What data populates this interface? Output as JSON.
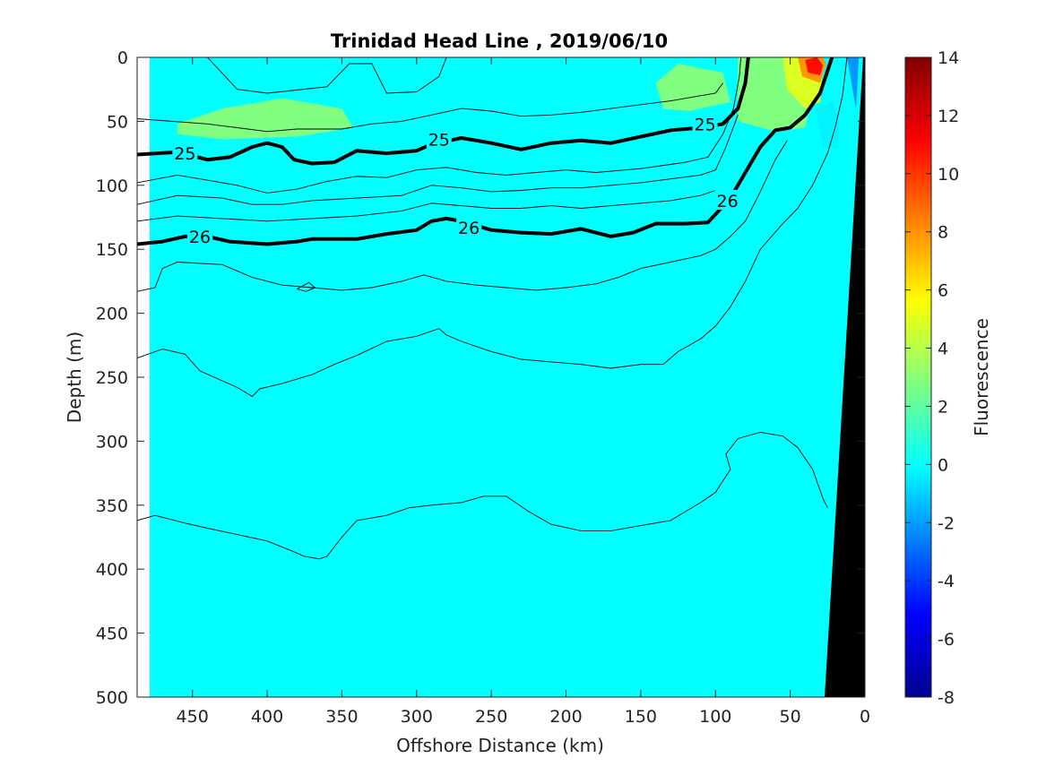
{
  "chart_data": {
    "type": "contour",
    "title": "Trinidad Head Line , 2019/06/10",
    "xlabel": "Offshore Distance (km)",
    "ylabel": "Depth (m)",
    "xlim": [
      487,
      0
    ],
    "ylim": [
      0,
      500
    ],
    "x_ticks": [
      "450",
      "400",
      "350",
      "300",
      "250",
      "200",
      "150",
      "100",
      "50",
      "0"
    ],
    "y_ticks": [
      "0",
      "50",
      "100",
      "150",
      "200",
      "250",
      "300",
      "350",
      "400",
      "450",
      "500"
    ],
    "background_fluorescence": 1,
    "fluorescence_patches": [
      {
        "value": 3,
        "points": [
          [
            460,
            52
          ],
          [
            430,
            40
          ],
          [
            390,
            32
          ],
          [
            350,
            40
          ],
          [
            342,
            55
          ],
          [
            380,
            62
          ],
          [
            430,
            64
          ],
          [
            460,
            60
          ]
        ]
      },
      {
        "value": 3,
        "points": [
          [
            95,
            12
          ],
          [
            90,
            35
          ],
          [
            118,
            42
          ],
          [
            135,
            40
          ],
          [
            140,
            20
          ],
          [
            125,
            5
          ]
        ]
      },
      {
        "value": 3,
        "points": [
          [
            85,
            0
          ],
          [
            85,
            50
          ],
          [
            60,
            58
          ],
          [
            40,
            55
          ],
          [
            35,
            30
          ],
          [
            50,
            0
          ]
        ]
      },
      {
        "value": 5,
        "points": [
          [
            55,
            0
          ],
          [
            52,
            25
          ],
          [
            40,
            40
          ],
          [
            30,
            35
          ],
          [
            28,
            0
          ]
        ]
      },
      {
        "value": 8,
        "points": [
          [
            45,
            0
          ],
          [
            42,
            15
          ],
          [
            30,
            20
          ],
          [
            26,
            5
          ],
          [
            28,
            0
          ]
        ]
      },
      {
        "value": 11,
        "points": [
          [
            40,
            2
          ],
          [
            38,
            12
          ],
          [
            30,
            14
          ],
          [
            28,
            6
          ],
          [
            32,
            0
          ]
        ]
      },
      {
        "value": 0,
        "points": [
          [
            33,
            40
          ],
          [
            28,
            70
          ],
          [
            18,
            72
          ],
          [
            17,
            50
          ],
          [
            22,
            35
          ]
        ]
      },
      {
        "value": -2,
        "points": [
          [
            12,
            0
          ],
          [
            6,
            40
          ],
          [
            4,
            0
          ]
        ]
      }
    ],
    "isopycnal_25": [
      [
        487,
        76
      ],
      [
        460,
        74
      ],
      [
        440,
        80
      ],
      [
        425,
        78
      ],
      [
        410,
        70
      ],
      [
        400,
        67
      ],
      [
        390,
        70
      ],
      [
        382,
        80
      ],
      [
        370,
        83
      ],
      [
        355,
        82
      ],
      [
        350,
        79
      ],
      [
        340,
        73
      ],
      [
        320,
        75
      ],
      [
        300,
        73
      ],
      [
        290,
        68
      ],
      [
        270,
        63
      ],
      [
        250,
        67
      ],
      [
        230,
        72
      ],
      [
        210,
        67
      ],
      [
        190,
        65
      ],
      [
        170,
        67
      ],
      [
        150,
        62
      ],
      [
        130,
        57
      ],
      [
        110,
        55
      ],
      [
        95,
        52
      ],
      [
        85,
        40
      ],
      [
        80,
        20
      ],
      [
        78,
        0
      ]
    ],
    "isopycnal_26": [
      [
        487,
        146
      ],
      [
        470,
        144
      ],
      [
        455,
        140
      ],
      [
        440,
        140
      ],
      [
        425,
        144
      ],
      [
        400,
        146
      ],
      [
        380,
        144
      ],
      [
        370,
        142
      ],
      [
        340,
        142
      ],
      [
        320,
        138
      ],
      [
        300,
        135
      ],
      [
        290,
        128
      ],
      [
        280,
        126
      ],
      [
        270,
        128
      ],
      [
        250,
        135
      ],
      [
        230,
        137
      ],
      [
        210,
        138
      ],
      [
        190,
        134
      ],
      [
        170,
        140
      ],
      [
        155,
        137
      ],
      [
        140,
        130
      ],
      [
        120,
        130
      ],
      [
        105,
        129
      ],
      [
        90,
        110
      ],
      [
        80,
        90
      ],
      [
        70,
        70
      ],
      [
        60,
        57
      ],
      [
        50,
        55
      ],
      [
        40,
        45
      ],
      [
        30,
        28
      ],
      [
        22,
        0
      ]
    ],
    "contour_labels": [
      {
        "text": "25",
        "x": 455,
        "y": 75
      },
      {
        "text": "25",
        "x": 285,
        "y": 64
      },
      {
        "text": "25",
        "x": 107,
        "y": 52
      },
      {
        "text": "26",
        "x": 445,
        "y": 140
      },
      {
        "text": "26",
        "x": 265,
        "y": 133
      },
      {
        "text": "26",
        "x": 92,
        "y": 112
      }
    ],
    "thin_contours": [
      [
        [
          487,
          0
        ],
        [
          440,
          0
        ],
        [
          420,
          25
        ],
        [
          400,
          28
        ],
        [
          360,
          23
        ],
        [
          345,
          5
        ],
        [
          330,
          5
        ],
        [
          320,
          28
        ],
        [
          300,
          27
        ],
        [
          285,
          15
        ],
        [
          280,
          0
        ]
      ],
      [
        [
          487,
          48
        ],
        [
          440,
          52
        ],
        [
          420,
          55
        ],
        [
          400,
          58
        ],
        [
          380,
          56
        ],
        [
          350,
          56
        ],
        [
          330,
          52
        ],
        [
          310,
          50
        ],
        [
          290,
          45
        ],
        [
          270,
          40
        ],
        [
          250,
          42
        ],
        [
          230,
          46
        ],
        [
          210,
          45
        ],
        [
          190,
          43
        ],
        [
          170,
          40
        ],
        [
          150,
          37
        ],
        [
          130,
          34
        ],
        [
          110,
          30
        ],
        [
          100,
          28
        ],
        [
          95,
          20
        ]
      ],
      [
        [
          487,
          98
        ],
        [
          460,
          92
        ],
        [
          440,
          96
        ],
        [
          420,
          100
        ],
        [
          400,
          106
        ],
        [
          380,
          103
        ],
        [
          360,
          97
        ],
        [
          340,
          93
        ],
        [
          320,
          94
        ],
        [
          300,
          88
        ],
        [
          280,
          86
        ],
        [
          260,
          90
        ],
        [
          240,
          92
        ],
        [
          220,
          90
        ],
        [
          200,
          88
        ],
        [
          180,
          90
        ],
        [
          150,
          87
        ],
        [
          120,
          82
        ],
        [
          105,
          78
        ],
        [
          95,
          60
        ],
        [
          88,
          40
        ],
        [
          84,
          15
        ],
        [
          83,
          0
        ]
      ],
      [
        [
          487,
          115
        ],
        [
          460,
          108
        ],
        [
          430,
          110
        ],
        [
          410,
          115
        ],
        [
          390,
          115
        ],
        [
          370,
          112
        ],
        [
          340,
          110
        ],
        [
          310,
          108
        ],
        [
          290,
          100
        ],
        [
          270,
          102
        ],
        [
          250,
          105
        ],
        [
          230,
          104
        ],
        [
          210,
          102
        ],
        [
          190,
          102
        ],
        [
          170,
          100
        ],
        [
          150,
          98
        ],
        [
          130,
          95
        ],
        [
          110,
          92
        ],
        [
          100,
          88
        ],
        [
          93,
          70
        ],
        [
          85,
          45
        ]
      ],
      [
        [
          487,
          128
        ],
        [
          460,
          124
        ],
        [
          430,
          126
        ],
        [
          400,
          128
        ],
        [
          370,
          126
        ],
        [
          340,
          124
        ],
        [
          310,
          120
        ],
        [
          290,
          114
        ],
        [
          270,
          116
        ],
        [
          250,
          118
        ],
        [
          230,
          118
        ],
        [
          210,
          116
        ],
        [
          190,
          118
        ],
        [
          170,
          116
        ],
        [
          150,
          114
        ],
        [
          130,
          112
        ],
        [
          110,
          108
        ],
        [
          100,
          104
        ]
      ],
      [
        [
          487,
          183
        ],
        [
          475,
          180
        ],
        [
          470,
          165
        ],
        [
          460,
          160
        ],
        [
          430,
          162
        ],
        [
          410,
          172
        ],
        [
          390,
          178
        ],
        [
          370,
          180
        ],
        [
          350,
          182
        ],
        [
          330,
          180
        ],
        [
          310,
          175
        ],
        [
          295,
          170
        ],
        [
          280,
          175
        ],
        [
          260,
          178
        ],
        [
          240,
          180
        ],
        [
          220,
          182
        ],
        [
          200,
          180
        ],
        [
          180,
          177
        ],
        [
          165,
          172
        ],
        [
          150,
          165
        ],
        [
          130,
          160
        ],
        [
          110,
          155
        ],
        [
          100,
          150
        ],
        [
          90,
          140
        ],
        [
          80,
          128
        ],
        [
          70,
          105
        ],
        [
          60,
          80
        ],
        [
          52,
          65
        ]
      ],
      [
        [
          487,
          235
        ],
        [
          470,
          228
        ],
        [
          455,
          232
        ],
        [
          445,
          245
        ],
        [
          420,
          258
        ],
        [
          410,
          265
        ],
        [
          405,
          259
        ],
        [
          390,
          255
        ],
        [
          370,
          248
        ],
        [
          355,
          240
        ],
        [
          340,
          233
        ],
        [
          320,
          222
        ],
        [
          300,
          218
        ],
        [
          285,
          212
        ],
        [
          280,
          217
        ],
        [
          270,
          222
        ],
        [
          250,
          230
        ],
        [
          230,
          236
        ],
        [
          210,
          238
        ],
        [
          190,
          240
        ],
        [
          170,
          243
        ],
        [
          150,
          240
        ],
        [
          135,
          240
        ],
        [
          125,
          230
        ],
        [
          110,
          220
        ],
        [
          100,
          210
        ],
        [
          90,
          195
        ],
        [
          80,
          175
        ],
        [
          70,
          150
        ],
        [
          55,
          130
        ],
        [
          45,
          118
        ],
        [
          35,
          100
        ],
        [
          25,
          75
        ],
        [
          20,
          55
        ],
        [
          15,
          30
        ],
        [
          12,
          0
        ]
      ],
      [
        [
          487,
          362
        ],
        [
          475,
          358
        ],
        [
          455,
          364
        ],
        [
          440,
          368
        ],
        [
          420,
          373
        ],
        [
          400,
          378
        ],
        [
          385,
          385
        ],
        [
          375,
          390
        ],
        [
          365,
          392
        ],
        [
          360,
          390
        ],
        [
          350,
          375
        ],
        [
          340,
          362
        ],
        [
          320,
          358
        ],
        [
          305,
          352
        ],
        [
          290,
          350
        ],
        [
          270,
          348
        ],
        [
          255,
          343
        ],
        [
          240,
          343
        ],
        [
          225,
          355
        ],
        [
          210,
          365
        ],
        [
          190,
          370
        ],
        [
          170,
          370
        ],
        [
          150,
          366
        ],
        [
          130,
          362
        ],
        [
          110,
          348
        ],
        [
          100,
          340
        ],
        [
          90,
          322
        ],
        [
          93,
          310
        ],
        [
          85,
          298
        ],
        [
          70,
          293
        ],
        [
          55,
          296
        ],
        [
          45,
          305
        ],
        [
          35,
          322
        ],
        [
          28,
          345
        ],
        [
          25,
          352
        ]
      ],
      [
        [
          380,
          181
        ],
        [
          372,
          176
        ],
        [
          368,
          180
        ],
        [
          374,
          183
        ],
        [
          380,
          181
        ]
      ]
    ]
  }
}
